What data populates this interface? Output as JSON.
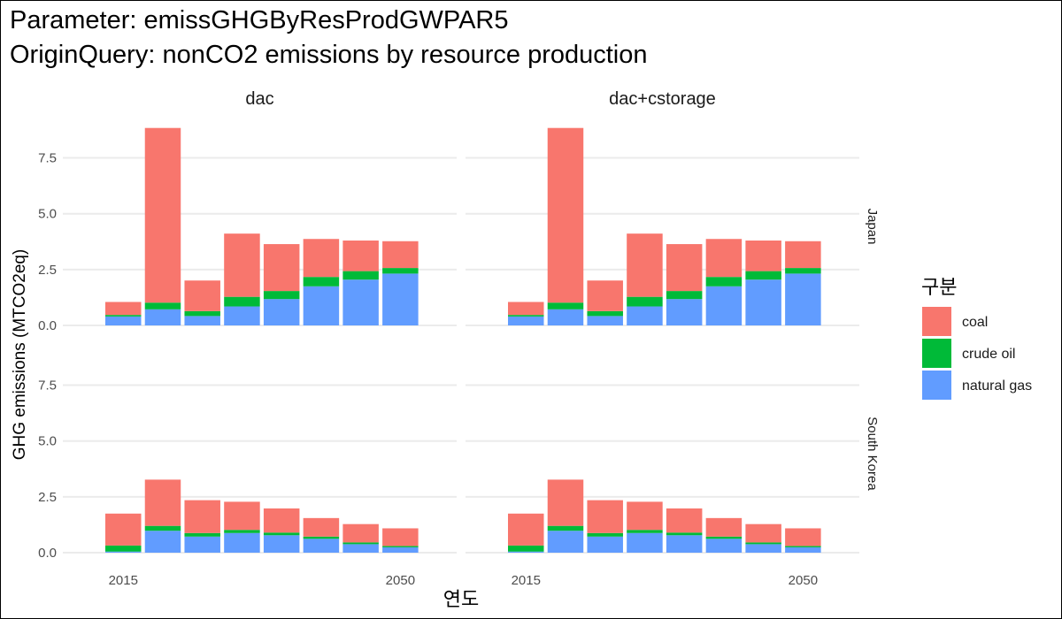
{
  "chart_data": {
    "type": "bar",
    "stacked": true,
    "title": "Parameter: emissGHGByResProdGWPAR5",
    "subtitle": "OriginQuery: nonCO2 emissions by resource production",
    "xlabel": "연도",
    "ylabel": "GHG emissions (MTCO2eq)",
    "x": [
      2015,
      2020,
      2025,
      2030,
      2035,
      2040,
      2045,
      2050
    ],
    "x_ticks": [
      2015,
      2050
    ],
    "ylim": [
      0,
      8.9
    ],
    "y_ticks": [
      "0.0",
      "2.5",
      "5.0",
      "7.5"
    ],
    "y_tick_values": [
      0,
      2.5,
      5.0,
      7.5
    ],
    "grid": true,
    "legend": {
      "title": "구분",
      "position": "right",
      "entries": [
        {
          "name": "coal",
          "color": "#F8766D"
        },
        {
          "name": "crude oil",
          "color": "#00BA38"
        },
        {
          "name": "natural gas",
          "color": "#619CFF"
        }
      ]
    },
    "stack_order": [
      "natural gas",
      "crude oil",
      "coal"
    ],
    "facet_columns": [
      "dac",
      "dac+cstorage"
    ],
    "facet_rows": [
      "Japan",
      "South Korea"
    ],
    "panels": [
      {
        "column": "dac",
        "row": "Japan",
        "series": [
          {
            "name": "natural gas",
            "values": [
              0.4,
              0.72,
              0.42,
              0.85,
              1.18,
              1.75,
              2.05,
              2.32
            ]
          },
          {
            "name": "crude oil",
            "values": [
              0.07,
              0.3,
              0.22,
              0.43,
              0.36,
              0.42,
              0.38,
              0.25
            ]
          },
          {
            "name": "coal",
            "values": [
              0.58,
              7.82,
              1.37,
              2.83,
              2.1,
              1.7,
              1.37,
              1.2
            ]
          }
        ]
      },
      {
        "column": "dac+cstorage",
        "row": "Japan",
        "series": [
          {
            "name": "natural gas",
            "values": [
              0.4,
              0.72,
              0.42,
              0.85,
              1.18,
              1.75,
              2.05,
              2.32
            ]
          },
          {
            "name": "crude oil",
            "values": [
              0.07,
              0.3,
              0.22,
              0.43,
              0.36,
              0.42,
              0.38,
              0.25
            ]
          },
          {
            "name": "coal",
            "values": [
              0.58,
              7.82,
              1.37,
              2.83,
              2.1,
              1.7,
              1.37,
              1.2
            ]
          }
        ]
      },
      {
        "column": "dac",
        "row": "South Korea",
        "series": [
          {
            "name": "natural gas",
            "values": [
              0.05,
              0.98,
              0.72,
              0.88,
              0.78,
              0.62,
              0.38,
              0.24
            ]
          },
          {
            "name": "crude oil",
            "values": [
              0.27,
              0.22,
              0.16,
              0.14,
              0.12,
              0.1,
              0.08,
              0.06
            ]
          },
          {
            "name": "coal",
            "values": [
              1.43,
              2.07,
              1.47,
              1.26,
              1.08,
              0.83,
              0.82,
              0.79
            ]
          }
        ]
      },
      {
        "column": "dac+cstorage",
        "row": "South Korea",
        "series": [
          {
            "name": "natural gas",
            "values": [
              0.05,
              0.98,
              0.72,
              0.88,
              0.78,
              0.62,
              0.38,
              0.24
            ]
          },
          {
            "name": "crude oil",
            "values": [
              0.27,
              0.22,
              0.16,
              0.14,
              0.12,
              0.1,
              0.08,
              0.06
            ]
          },
          {
            "name": "coal",
            "values": [
              1.43,
              2.07,
              1.47,
              1.26,
              1.08,
              0.83,
              0.82,
              0.79
            ]
          }
        ]
      }
    ]
  }
}
